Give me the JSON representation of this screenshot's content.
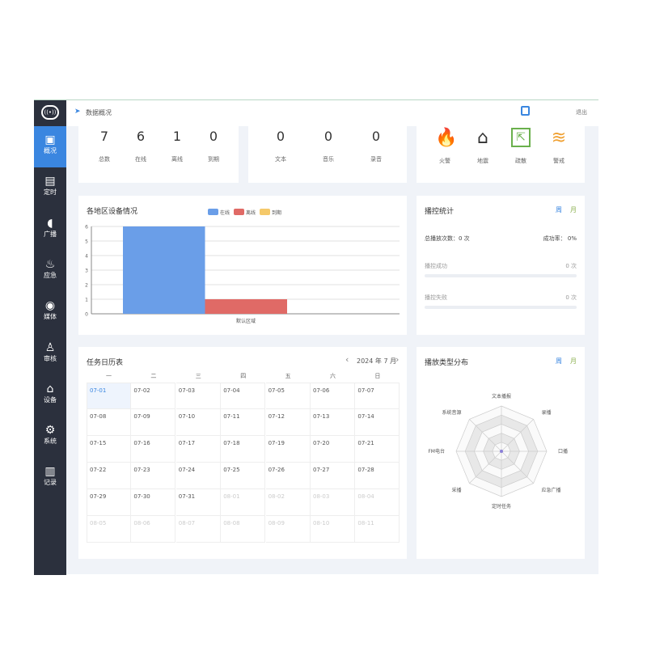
{
  "header": {
    "breadcrumb": "数据概况",
    "logout": "退出"
  },
  "sidebar": {
    "items": [
      {
        "label": "概况",
        "icon": "monitor-chart-icon"
      },
      {
        "label": "定时",
        "icon": "schedule-clock-icon"
      },
      {
        "label": "广播",
        "icon": "speaker-icon"
      },
      {
        "label": "应急",
        "icon": "alarm-light-icon"
      },
      {
        "label": "媒体",
        "icon": "media-disc-icon"
      },
      {
        "label": "审核",
        "icon": "stamp-icon"
      },
      {
        "label": "设备",
        "icon": "device-icon"
      },
      {
        "label": "系统",
        "icon": "gear-icon"
      },
      {
        "label": "记录",
        "icon": "clipboard-icon"
      }
    ]
  },
  "devices": [
    {
      "value": "7",
      "label": "总数"
    },
    {
      "value": "6",
      "label": "在线"
    },
    {
      "value": "1",
      "label": "离线"
    },
    {
      "value": "0",
      "label": "到期"
    }
  ],
  "media": [
    {
      "value": "0",
      "label": "文本"
    },
    {
      "value": "0",
      "label": "音乐"
    },
    {
      "value": "0",
      "label": "录音"
    }
  ],
  "emergency": [
    {
      "label": "火警",
      "icon": "fire-icon",
      "color": "#e03c2e"
    },
    {
      "label": "地震",
      "icon": "earthquake-house-icon",
      "color": "#333333"
    },
    {
      "label": "疏散",
      "icon": "exit-icon",
      "color": "#6ab04c"
    },
    {
      "label": "警戒",
      "icon": "flood-icon",
      "color": "#f0a030"
    }
  ],
  "chart_data": {
    "type": "bar",
    "title": "各地区设备情况",
    "categories": [
      "默认区域"
    ],
    "series": [
      {
        "name": "在线",
        "values": [
          6
        ],
        "color": "#6a9ee8"
      },
      {
        "name": "离线",
        "values": [
          1
        ],
        "color": "#e06a66"
      },
      {
        "name": "到期",
        "values": [
          0
        ],
        "color": "#f5c96a"
      }
    ],
    "ylim": [
      0,
      6
    ],
    "yticks": [
      "0",
      "1",
      "2",
      "3",
      "4",
      "5",
      "6"
    ],
    "legend": "top-center",
    "grid": true
  },
  "stats": {
    "title": "播控统计",
    "week": "周",
    "month": "月",
    "total": "总播放次数：0 次",
    "rate": "成功率： 0%",
    "success_label": "播控成功",
    "success_value": "0 次",
    "success_pct": 0,
    "fail_label": "播控失败",
    "fail_value": "0 次",
    "fail_pct": 0
  },
  "calendar": {
    "title": "任务日历表",
    "month": "2024 年 7 月",
    "prev": "‹",
    "next": "›",
    "weekdays": [
      "一",
      "二",
      "三",
      "四",
      "五",
      "六",
      "日"
    ],
    "days": [
      "07-01",
      "07-02",
      "07-03",
      "07-04",
      "07-05",
      "07-06",
      "07-07",
      "07-08",
      "07-09",
      "07-10",
      "07-11",
      "07-12",
      "07-13",
      "07-14",
      "07-15",
      "07-16",
      "07-17",
      "07-18",
      "07-19",
      "07-20",
      "07-21",
      "07-22",
      "07-23",
      "07-24",
      "07-25",
      "07-26",
      "07-27",
      "07-28",
      "07-29",
      "07-30",
      "07-31",
      "08-01",
      "08-02",
      "08-03",
      "08-04",
      "08-05",
      "08-06",
      "08-07",
      "08-08",
      "08-09",
      "08-10",
      "08-11"
    ]
  },
  "radar": {
    "title": "播放类型分布",
    "week": "周",
    "month": "月",
    "indicators": [
      "文本播报",
      "录播",
      "口播",
      "应急广播",
      "定时任务",
      "采播",
      "FM电台",
      "系统音源"
    ],
    "values": [
      0,
      0,
      0,
      0,
      0,
      0,
      0,
      0
    ]
  }
}
